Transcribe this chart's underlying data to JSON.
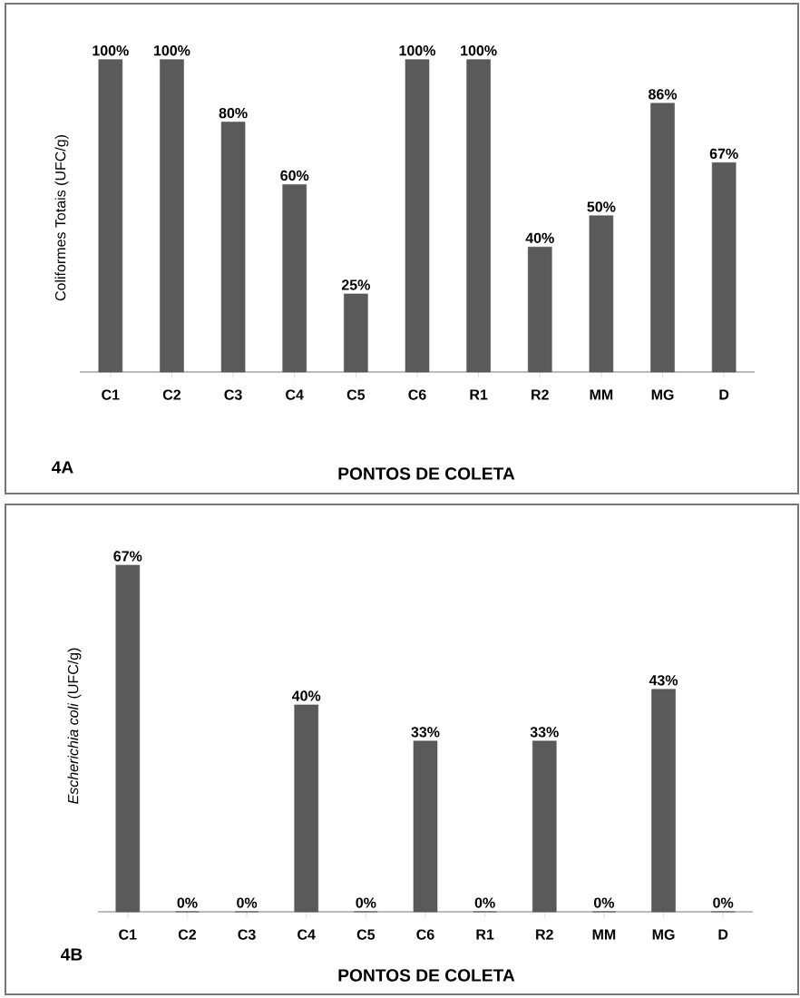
{
  "chart_data": [
    {
      "type": "bar",
      "categories": [
        "C1",
        "C2",
        "C3",
        "C4",
        "C5",
        "C6",
        "R1",
        "R2",
        "MM",
        "MG",
        "D"
      ],
      "values": [
        100,
        100,
        80,
        60,
        25,
        100,
        100,
        40,
        50,
        86,
        67
      ],
      "value_labels": [
        "100%",
        "100%",
        "80%",
        "60%",
        "25%",
        "100%",
        "100%",
        "40%",
        "50%",
        "86%",
        "67%"
      ],
      "color": "#5a5a5a",
      "xlabel": "PONTOS DE COLETA",
      "ylabel": "Coliformes Totais (UFC/g)",
      "annotations": [
        "4A"
      ]
    },
    {
      "type": "bar",
      "categories": [
        "C1",
        "C2",
        "C3",
        "C4",
        "C5",
        "C6",
        "R1",
        "R2",
        "MM",
        "MG",
        "D"
      ],
      "values": [
        67,
        0,
        0,
        40,
        0,
        33,
        0,
        33,
        0,
        43,
        0
      ],
      "value_labels": [
        "67%",
        "0%",
        "0%",
        "40%",
        "0%",
        "33%",
        "0%",
        "33%",
        "0%",
        "43%",
        "0%"
      ],
      "color": "#5a5a5a",
      "xlabel": "PONTOS DE COLETA",
      "ylabel": "*Escherichia coli* (UFC/g)",
      "annotations": [
        "4B"
      ]
    }
  ]
}
